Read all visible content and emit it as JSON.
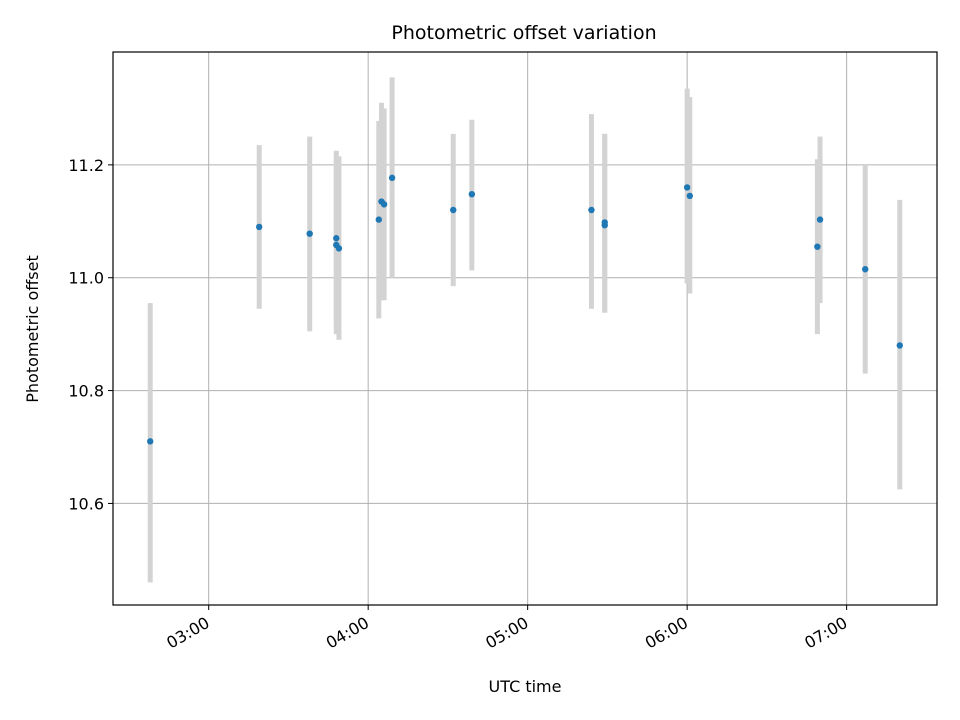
{
  "chart_data": {
    "type": "scatter",
    "title": "Photometric offset variation",
    "xlabel": "UTC time",
    "ylabel": "Photometric offset",
    "x_unit": "time_hh:mm",
    "xlim": [
      "02:24",
      "07:34"
    ],
    "ylim": [
      10.42,
      11.4
    ],
    "x_ticks": [
      "03:00",
      "04:00",
      "05:00",
      "06:00",
      "07:00"
    ],
    "y_ticks": [
      10.6,
      10.8,
      11.0,
      11.2
    ],
    "y_tick_labels": [
      "10.6",
      "10.8",
      "11.0",
      "11.2"
    ],
    "grid": true,
    "colors": {
      "points": "#1f77b4",
      "errorbars": "#d3d3d3",
      "grid": "#b0b0b0"
    },
    "points": [
      {
        "x": "02:38",
        "y": 10.71,
        "ylow": 10.46,
        "yhigh": 10.955
      },
      {
        "x": "03:19",
        "y": 11.09,
        "ylow": 10.945,
        "yhigh": 11.235
      },
      {
        "x": "03:38",
        "y": 11.078,
        "ylow": 10.905,
        "yhigh": 11.25
      },
      {
        "x": "03:48",
        "y": 11.07,
        "ylow": 10.915,
        "yhigh": 11.225
      },
      {
        "x": "03:48",
        "y": 11.058,
        "ylow": 10.9,
        "yhigh": 11.215
      },
      {
        "x": "03:49",
        "y": 11.052,
        "ylow": 10.89,
        "yhigh": 11.215
      },
      {
        "x": "04:04",
        "y": 11.103,
        "ylow": 10.928,
        "yhigh": 11.278
      },
      {
        "x": "04:05",
        "y": 11.135,
        "ylow": 10.96,
        "yhigh": 11.31
      },
      {
        "x": "04:06",
        "y": 11.13,
        "ylow": 10.96,
        "yhigh": 11.3
      },
      {
        "x": "04:09",
        "y": 11.177,
        "ylow": 11.0,
        "yhigh": 11.355
      },
      {
        "x": "04:32",
        "y": 11.12,
        "ylow": 10.985,
        "yhigh": 11.255
      },
      {
        "x": "04:39",
        "y": 11.148,
        "ylow": 11.013,
        "yhigh": 11.28
      },
      {
        "x": "05:24",
        "y": 11.12,
        "ylow": 10.945,
        "yhigh": 11.29
      },
      {
        "x": "05:29",
        "y": 11.093,
        "ylow": 10.938,
        "yhigh": 11.255
      },
      {
        "x": "05:29",
        "y": 11.098,
        "ylow": 10.94,
        "yhigh": 11.255
      },
      {
        "x": "06:00",
        "y": 11.16,
        "ylow": 10.99,
        "yhigh": 11.335
      },
      {
        "x": "06:01",
        "y": 11.145,
        "ylow": 10.972,
        "yhigh": 11.32
      },
      {
        "x": "06:49",
        "y": 11.055,
        "ylow": 10.9,
        "yhigh": 11.21
      },
      {
        "x": "06:50",
        "y": 11.103,
        "ylow": 10.955,
        "yhigh": 11.25
      },
      {
        "x": "07:07",
        "y": 11.015,
        "ylow": 10.83,
        "yhigh": 11.2
      },
      {
        "x": "07:20",
        "y": 10.88,
        "ylow": 10.625,
        "yhigh": 11.138
      }
    ]
  }
}
